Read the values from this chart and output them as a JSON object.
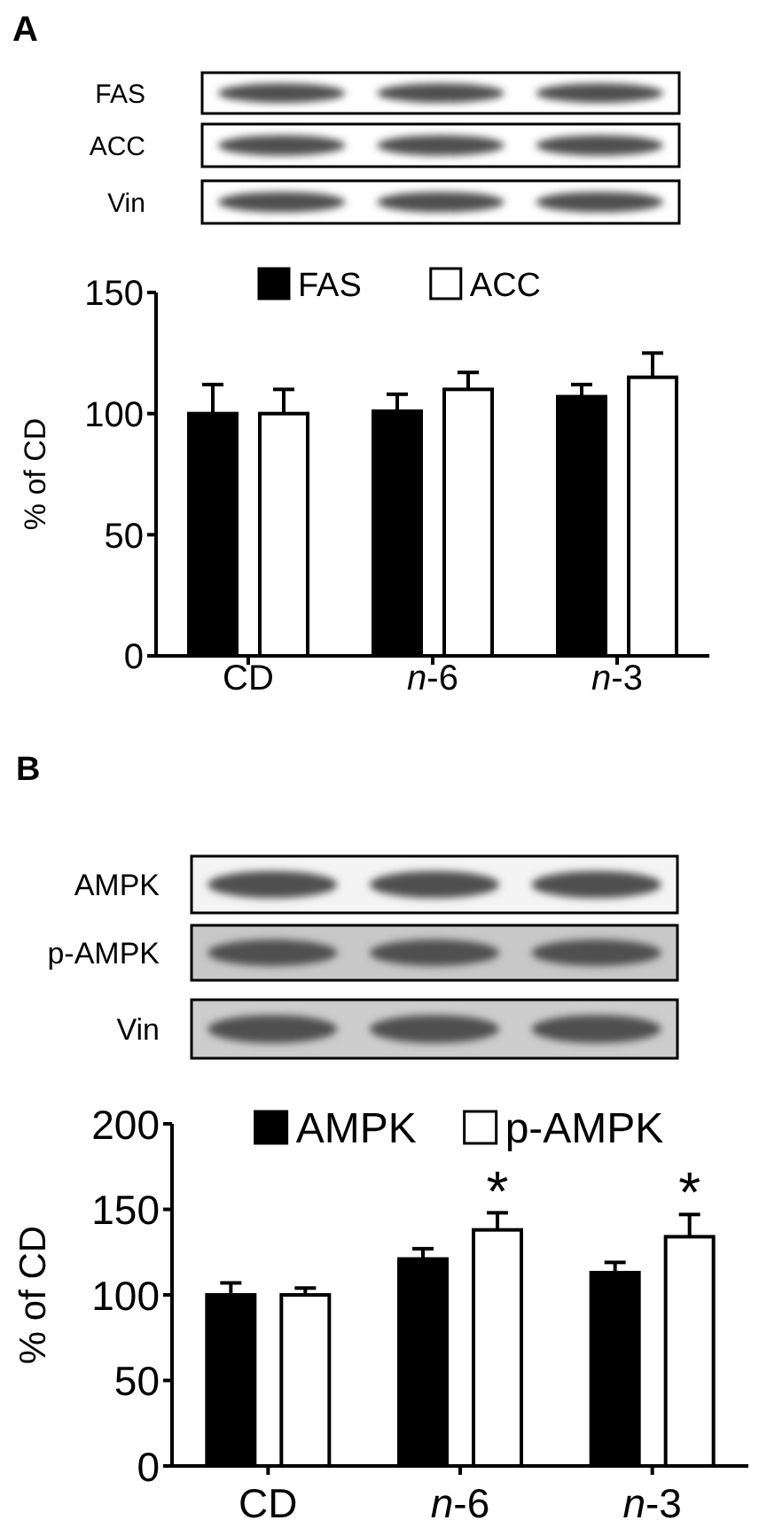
{
  "chart_data": [
    {
      "type": "bar",
      "title": "A",
      "ylabel": "% of CD",
      "categories": [
        "CD",
        "n-6",
        "n-3"
      ],
      "series": [
        {
          "name": "FAS",
          "color": "#000000",
          "values": [
            100,
            101,
            107
          ],
          "errors": [
            [
              100,
              112
            ],
            [
              101,
              108
            ],
            [
              107,
              112
            ]
          ]
        },
        {
          "name": "ACC",
          "color": "#ffffff",
          "values": [
            100,
            110,
            115
          ],
          "errors": [
            [
              100,
              110
            ],
            [
              110,
              117
            ],
            [
              115,
              125
            ]
          ]
        }
      ],
      "ylim": [
        0,
        150
      ],
      "yticks": [
        0,
        50,
        100,
        150
      ],
      "legend": "top",
      "annotations": [
        "FAS",
        "ACC",
        "Vin"
      ]
    },
    {
      "type": "bar",
      "title": "B",
      "ylabel": "% of CD",
      "categories": [
        "CD",
        "n-6",
        "n-3"
      ],
      "series": [
        {
          "name": "AMPK",
          "color": "#000000",
          "values": [
            100,
            121,
            113
          ],
          "errors": [
            [
              100,
              107
            ],
            [
              121,
              127
            ],
            [
              113,
              119
            ]
          ]
        },
        {
          "name": "p-AMPK",
          "color": "#ffffff",
          "values": [
            100,
            138,
            134
          ],
          "errors": [
            [
              100,
              104
            ],
            [
              138,
              148
            ],
            [
              134,
              147
            ]
          ]
        }
      ],
      "ylim": [
        0,
        200
      ],
      "yticks": [
        0,
        50,
        100,
        150,
        200
      ],
      "legend": "top",
      "annotations": [
        "AMPK",
        "p-AMPK",
        "Vin",
        "*",
        "*"
      ]
    }
  ]
}
